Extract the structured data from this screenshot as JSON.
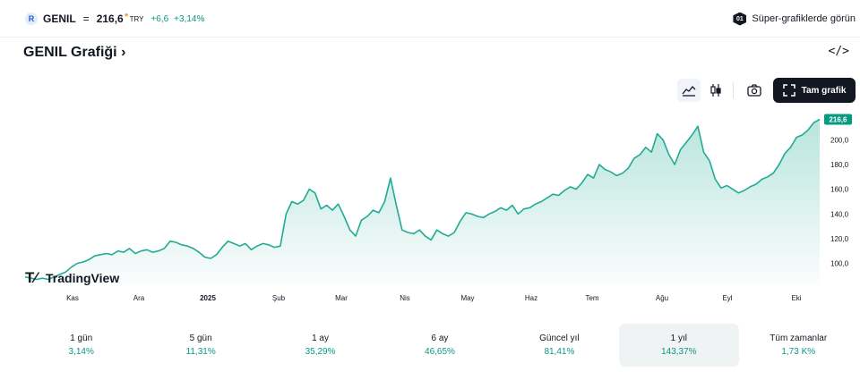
{
  "ticker": {
    "logo": "R",
    "symbol": "GENIL",
    "equals": "=",
    "price": "216,6",
    "dot": "●",
    "currency": "TRY",
    "change": "+6,6",
    "change_pct": "+3,14%"
  },
  "super_charts": {
    "badge": "01",
    "label": "Süper-grafiklerde görün"
  },
  "header": {
    "title": "GENIL Grafiği",
    "chevron": "›",
    "embed_label": "</>"
  },
  "toolbar": {
    "fullscreen_label": "Tam grafik"
  },
  "colors": {
    "line": "#22ab94",
    "positive": "#089981",
    "badge": "#089981"
  },
  "icons": {
    "area": "area-chart-icon",
    "candle": "candlestick-icon",
    "camera": "camera-icon",
    "fullscreen": "fullscreen-icon"
  },
  "watermark": {
    "text": "TradingView"
  },
  "chart_data": {
    "type": "area",
    "x_labels": [
      "Kas",
      "Ara",
      "2025",
      "Şub",
      "Mar",
      "Nis",
      "May",
      "Haz",
      "Tem",
      "Ağu",
      "Eyl",
      "Eki"
    ],
    "y_ticks": [
      "100,0",
      "120,0",
      "140,0",
      "160,0",
      "180,0",
      "200,0"
    ],
    "y_tick_values": [
      100,
      120,
      140,
      160,
      180,
      200
    ],
    "ylim": [
      83,
      222
    ],
    "last_value": 216.6,
    "last_label": "216,6",
    "values": [
      89,
      88,
      87,
      88,
      87,
      89,
      91,
      93,
      97,
      100,
      101,
      103,
      106,
      107,
      108,
      107,
      110,
      109,
      112,
      108,
      110,
      111,
      109,
      110,
      112,
      118,
      117,
      115,
      114,
      112,
      109,
      105,
      104,
      107,
      113,
      118,
      116,
      114,
      116,
      111,
      114,
      116,
      115,
      113,
      114,
      140,
      150,
      148,
      151,
      160,
      157,
      144,
      147,
      143,
      148,
      138,
      127,
      122,
      135,
      138,
      143,
      141,
      150,
      169,
      147,
      127,
      125,
      124,
      127,
      122,
      119,
      127,
      124,
      122,
      125,
      134,
      141,
      140,
      138,
      137,
      140,
      142,
      145,
      143,
      147,
      140,
      144,
      145,
      148,
      150,
      153,
      156,
      155,
      159,
      162,
      160,
      165,
      172,
      169,
      180,
      176,
      174,
      171,
      173,
      177,
      185,
      188,
      194,
      190,
      205,
      200,
      188,
      180,
      192,
      198,
      204,
      211,
      190,
      183,
      168,
      161,
      163,
      160,
      157,
      159,
      162,
      164,
      168,
      170,
      173,
      180,
      189,
      194,
      202,
      204,
      208,
      214,
      216.6
    ]
  },
  "periods": [
    {
      "label": "1 gün",
      "value": "3,14%"
    },
    {
      "label": "5 gün",
      "value": "11,31%"
    },
    {
      "label": "1 ay",
      "value": "35,29%"
    },
    {
      "label": "6 ay",
      "value": "46,65%"
    },
    {
      "label": "Güncel yıl",
      "value": "81,41%"
    },
    {
      "label": "1 yıl",
      "value": "143,37%",
      "active": true
    },
    {
      "label": "Tüm zamanlar",
      "value": "1,73 K%"
    }
  ]
}
